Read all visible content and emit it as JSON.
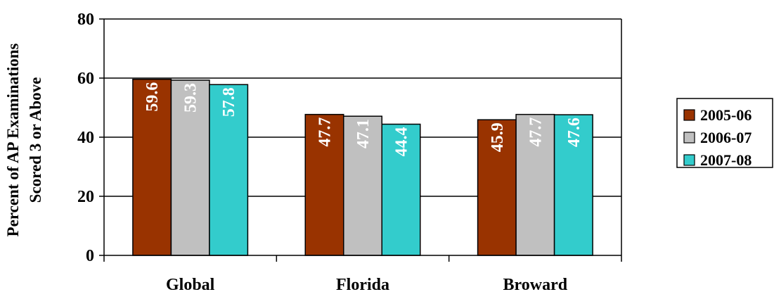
{
  "chart_data": {
    "type": "bar",
    "categories": [
      "Global",
      "Florida",
      "Broward"
    ],
    "series": [
      {
        "name": "2005-06",
        "values": [
          59.6,
          47.7,
          45.9
        ],
        "labels": [
          "59.6",
          "47.7",
          "45.9"
        ],
        "color": "#993300"
      },
      {
        "name": "2006-07",
        "values": [
          59.3,
          47.1,
          47.7
        ],
        "labels": [
          "59.3",
          "47.1",
          "47.7"
        ],
        "color": "#C0C0C0"
      },
      {
        "name": "2007-08",
        "values": [
          57.8,
          44.4,
          47.6
        ],
        "labels": [
          "57.8",
          "44.4",
          "47.6"
        ],
        "color": "#33CCCC"
      }
    ],
    "ylabel": [
      "Percent of AP Examinations",
      "Scored 3 or Above"
    ],
    "ylim": [
      0,
      80
    ],
    "yticks": [
      0,
      20,
      40,
      60,
      80
    ],
    "ytick_labels": [
      "0",
      "20",
      "40",
      "60",
      "80"
    ],
    "grid": true,
    "legend": "right",
    "data_labels_rotated": true
  }
}
